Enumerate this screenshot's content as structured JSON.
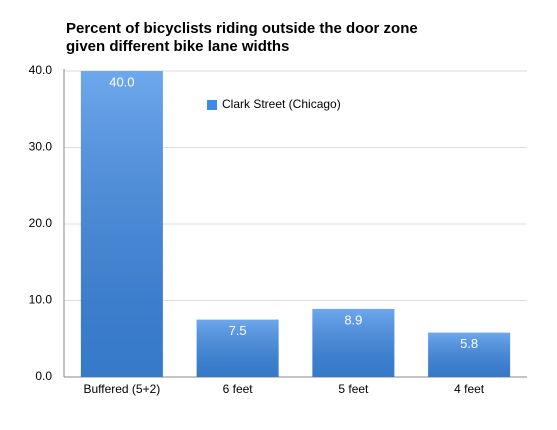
{
  "chart_data": {
    "type": "bar",
    "title": "Percent of bicyclists riding outside the door zone given different bike lane widths",
    "categories": [
      "Buffered (5+2)",
      "6 feet",
      "5 feet",
      "4 feet"
    ],
    "series": [
      {
        "name": "Clark Street (Chicago)",
        "color": "#3d8ae6",
        "values": [
          40,
          7.5,
          8.9,
          5.8
        ],
        "value_labels": [
          "40.0",
          "7.5",
          "8.9",
          "5.8"
        ]
      }
    ],
    "ylim": [
      0,
      40
    ],
    "yticks": [
      {
        "value": 0,
        "label": "0.0"
      },
      {
        "value": 10,
        "label": "10.0"
      },
      {
        "value": 20,
        "label": "20.0"
      },
      {
        "value": 30,
        "label": "30.0"
      },
      {
        "value": 40,
        "label": "40.0"
      }
    ],
    "grid": true,
    "legend": "top"
  }
}
